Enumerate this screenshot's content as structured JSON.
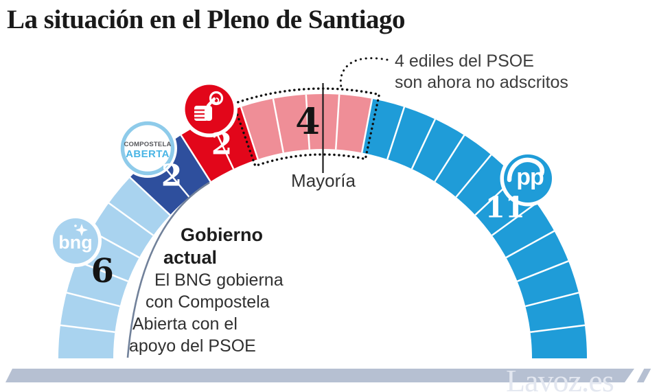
{
  "title": "La situación en el Pleno de Santiago",
  "annotation": {
    "line1": "4 ediles del PSOE",
    "line2": "son ahora no adscritos"
  },
  "majority_label": "Mayoría",
  "government_note": {
    "heading": [
      "Gobierno",
      "actual"
    ],
    "lines": [
      "El BNG gobierna",
      "con Compostela",
      "Abierta con el",
      "apoyo del PSOE"
    ]
  },
  "watermark": "Lavoz.es",
  "logos": {
    "bng": "bng",
    "compostela_line1": "COMPOSTELA",
    "compostela_line2": "ABERTA",
    "pp": "pp"
  },
  "colors": {
    "bng": "#a9d3ef",
    "compostela_aberta": "#2e4f9d",
    "psoe": "#e2061a",
    "no_adscritos": "#ef8e97",
    "pp": "#1f9cd8",
    "band": "#b6c0d2",
    "watermark_text": "#e3e7f0",
    "bracket_line": "#71819a",
    "ca_ring": "#8ecbea",
    "ca_text_dark": "#55565a",
    "ca_text_blue": "#4ab5e5",
    "annotation_text": "#3c3c3c",
    "title_text": "#1a1a1a"
  },
  "chart_data": {
    "type": "parliament-arc",
    "title": "La situación en el Pleno de Santiago",
    "total_seats": 25,
    "arc_span_degrees": 180,
    "majority": {
      "label": "Mayoría",
      "position_seats": 12.5
    },
    "categories": [
      "BNG",
      "Compostela Aberta",
      "PSOE",
      "PSOE no adscritos",
      "PP"
    ],
    "values": [
      6,
      2,
      2,
      4,
      11
    ],
    "parties": [
      {
        "name": "BNG",
        "seats": 6,
        "color": "#a9d3ef",
        "label": "6",
        "label_color": "#141414"
      },
      {
        "name": "Compostela Aberta",
        "seats": 2,
        "color": "#2e4f9d",
        "label": "2",
        "label_color": "#ffffff"
      },
      {
        "name": "PSOE",
        "seats": 2,
        "color": "#e2061a",
        "label": "2",
        "label_color": "#ffffff"
      },
      {
        "name": "PSOE no adscritos",
        "seats": 4,
        "color": "#ef8e97",
        "label": "4",
        "label_color": "#141414",
        "highlighted": true,
        "annotation": "4 ediles del PSOE son ahora no adscritos"
      },
      {
        "name": "PP",
        "seats": 11,
        "color": "#1f9cd8",
        "label": "11",
        "label_color": "#ffffff"
      }
    ],
    "notes": {
      "government": "Gobierno actual — El BNG gobierna con Compostela Aberta con el apoyo del PSOE"
    }
  }
}
